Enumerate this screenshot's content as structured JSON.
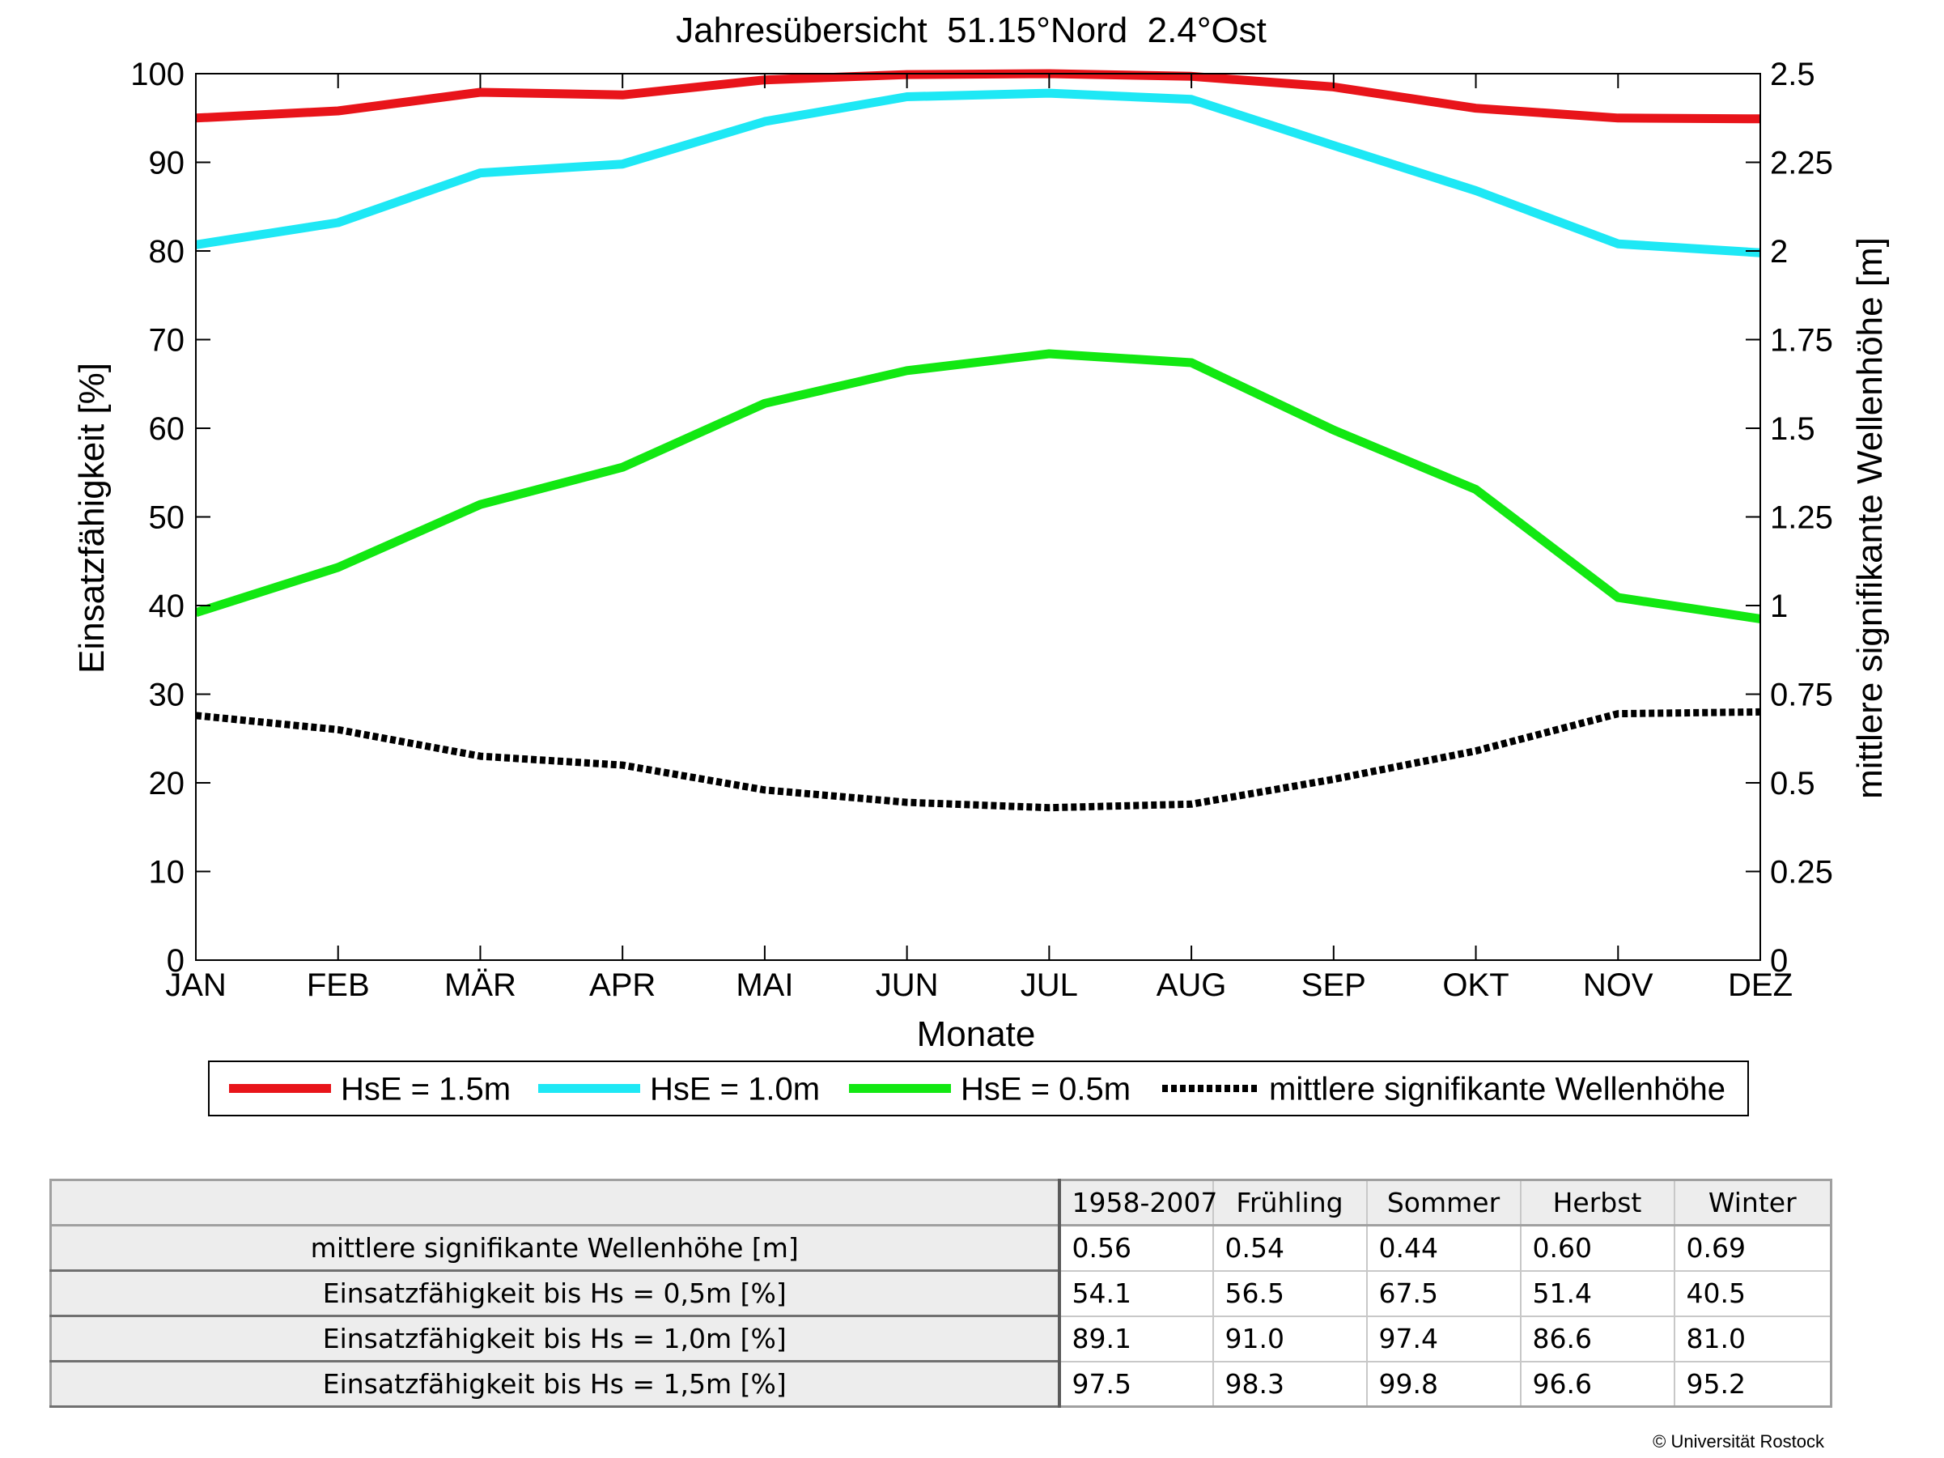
{
  "chart_data": {
    "type": "line",
    "title": "Jahresübersicht  51.15°Nord  2.4°Ost",
    "xlabel": "Monate",
    "ylabel": "Einsatzfähigkeit [%]",
    "y2label": "mittlere signifikante Wellenhöhe [m]",
    "categories": [
      "JAN",
      "FEB",
      "MÄR",
      "APR",
      "MAI",
      "JUN",
      "JUL",
      "AUG",
      "SEP",
      "OKT",
      "NOV",
      "DEZ"
    ],
    "ylim": [
      0,
      100
    ],
    "y2lim": [
      0,
      2.5
    ],
    "yticks": [
      "0",
      "10",
      "20",
      "30",
      "40",
      "50",
      "60",
      "70",
      "80",
      "90",
      "100"
    ],
    "y2ticks": [
      "0",
      "0.25",
      "0.5",
      "0.75",
      "1",
      "1.25",
      "1.5",
      "1.75",
      "2",
      "2.25",
      "2.5"
    ],
    "grid": false,
    "legend_position": "bottom",
    "series": [
      {
        "name": "HsE = 1.5m",
        "axis": "left",
        "color": "#e8141a",
        "style": "solid",
        "values": [
          95.0,
          95.8,
          97.9,
          97.6,
          99.3,
          99.9,
          100.0,
          99.7,
          98.5,
          96.1,
          95.0,
          94.9
        ]
      },
      {
        "name": "HsE = 1.0m",
        "axis": "left",
        "color": "#1ee8f5",
        "style": "solid",
        "values": [
          80.7,
          83.2,
          88.8,
          89.8,
          94.6,
          97.4,
          97.8,
          97.1,
          91.9,
          86.8,
          80.8,
          79.8
        ]
      },
      {
        "name": "HsE = 0.5m",
        "axis": "left",
        "color": "#12e812",
        "style": "solid",
        "values": [
          39.2,
          44.3,
          51.4,
          55.6,
          62.8,
          66.5,
          68.4,
          67.4,
          59.8,
          53.1,
          40.9,
          38.5
        ]
      },
      {
        "name": "mittlere signifikante Wellenhöhe",
        "axis": "right",
        "color": "#000000",
        "style": "dotted",
        "values": [
          0.69,
          0.65,
          0.575,
          0.55,
          0.48,
          0.445,
          0.43,
          0.44,
          0.51,
          0.59,
          0.695,
          0.7
        ]
      }
    ]
  },
  "table": {
    "headers": [
      "",
      "1958-2007",
      "Frühling",
      "Sommer",
      "Herbst",
      "Winter"
    ],
    "rows": [
      {
        "label": "mittlere signifikante Wellenhöhe [m]",
        "values": [
          "0.56",
          "0.54",
          "0.44",
          "0.60",
          "0.69"
        ]
      },
      {
        "label": "Einsatzfähigkeit bis Hs = 0,5m [%]",
        "values": [
          "54.1",
          "56.5",
          "67.5",
          "51.4",
          "40.5"
        ]
      },
      {
        "label": "Einsatzfähigkeit bis Hs = 1,0m [%]",
        "values": [
          "89.1",
          "91.0",
          "97.4",
          "86.6",
          "81.0"
        ]
      },
      {
        "label": "Einsatzfähigkeit bis Hs = 1,5m [%]",
        "values": [
          "97.5",
          "98.3",
          "99.8",
          "96.6",
          "95.2"
        ]
      }
    ]
  },
  "credit": "© Universität Rostock"
}
